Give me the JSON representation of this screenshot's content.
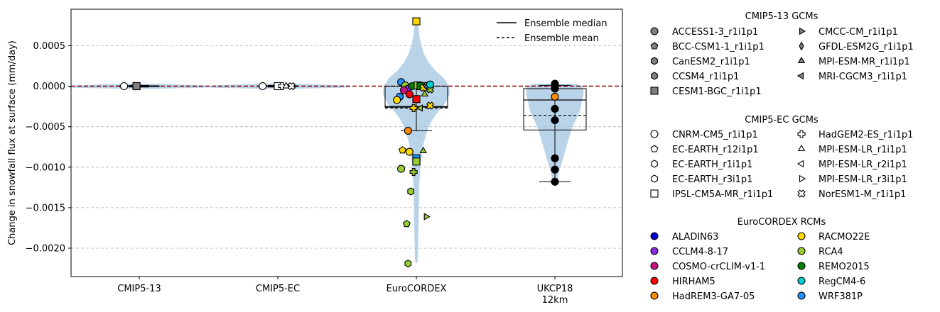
{
  "chart_data": {
    "type": "violin",
    "ylabel": "Change in snowfall flux at surface (mm/day)",
    "ylim": [
      -0.00235,
      0.00095
    ],
    "yticks": [
      {
        "v": 0.0005,
        "label": "0.0005"
      },
      {
        "v": 0.0,
        "label": "0.0000"
      },
      {
        "v": -0.0005,
        "label": "−0.0005"
      },
      {
        "v": -0.001,
        "label": "−0.0010"
      },
      {
        "v": -0.0015,
        "label": "−0.0015"
      },
      {
        "v": -0.002,
        "label": "−0.0020"
      }
    ],
    "grid": "y-dashed",
    "zero_line": {
      "y": 0,
      "color": "#8b0000",
      "style": "dashed"
    },
    "categories": [
      {
        "label": "CMIP5-13",
        "label2": ""
      },
      {
        "label": "CMIP5-EC",
        "label2": ""
      },
      {
        "label": "EuroCORDEX",
        "label2": ""
      },
      {
        "label": "UKCP18",
        "label2": "12km"
      }
    ],
    "violins": [
      {
        "category": 0,
        "profile": [
          [
            -3e-05,
            0.6
          ],
          [
            -2e-05,
            1.9
          ],
          [
            -1e-05,
            2.2
          ],
          [
            0.0,
            2.1
          ],
          [
            1e-05,
            1.9
          ],
          [
            2e-05,
            1.2
          ],
          [
            3e-05,
            0.5
          ]
        ]
      },
      {
        "category": 1,
        "profile": [
          [
            -3e-05,
            0.6
          ],
          [
            -2e-05,
            1.9
          ],
          [
            -1e-05,
            2.2
          ],
          [
            0.0,
            2.1
          ],
          [
            1e-05,
            1.9
          ],
          [
            2e-05,
            1.2
          ],
          [
            3e-05,
            0.5
          ]
        ]
      },
      {
        "category": 2,
        "profile": [
          [
            -0.00218,
            0.03
          ],
          [
            -0.0021,
            0.045
          ],
          [
            -0.002,
            0.05
          ],
          [
            -0.0019,
            0.055
          ],
          [
            -0.0018,
            0.06
          ],
          [
            -0.0017,
            0.065
          ],
          [
            -0.0016,
            0.07
          ],
          [
            -0.0015,
            0.075
          ],
          [
            -0.0014,
            0.08
          ],
          [
            -0.0013,
            0.085
          ],
          [
            -0.0012,
            0.09
          ],
          [
            -0.0011,
            0.105
          ],
          [
            -0.001,
            0.12
          ],
          [
            -0.0009,
            0.15
          ],
          [
            -0.0008,
            0.18
          ],
          [
            -0.0007,
            0.22
          ],
          [
            -0.0006,
            0.29
          ],
          [
            -0.0005,
            0.37
          ],
          [
            -0.0004,
            0.5
          ],
          [
            -0.0003,
            0.68
          ],
          [
            -0.0002,
            0.88
          ],
          [
            -0.0001,
            1.0
          ],
          [
            0.0,
            0.98
          ],
          [
            0.0001,
            0.82
          ],
          [
            0.0002,
            0.55
          ],
          [
            0.0003,
            0.36
          ],
          [
            0.0004,
            0.23
          ],
          [
            0.0005,
            0.15
          ],
          [
            0.0006,
            0.1
          ],
          [
            0.0007,
            0.07
          ],
          [
            0.0008,
            0.03
          ]
        ]
      },
      {
        "category": 3,
        "profile": [
          [
            -0.0012,
            0.08
          ],
          [
            -0.0011,
            0.1
          ],
          [
            -0.001,
            0.16
          ],
          [
            -0.0009,
            0.24
          ],
          [
            -0.0008,
            0.31
          ],
          [
            -0.0007,
            0.38
          ],
          [
            -0.0006,
            0.45
          ],
          [
            -0.0005,
            0.53
          ],
          [
            -0.0004,
            0.65
          ],
          [
            -0.0003,
            0.75
          ],
          [
            -0.0002,
            0.8
          ],
          [
            -0.0001,
            0.86
          ],
          [
            0.0,
            0.85
          ],
          [
            3e-05,
            0.62
          ]
        ]
      }
    ],
    "boxes": [
      {
        "category": 0,
        "q1": -5e-06,
        "median": 0.0,
        "q3": 5e-06,
        "mean": 0.0,
        "whislo": -1e-05,
        "whishi": 1e-05
      },
      {
        "category": 1,
        "q1": -5e-06,
        "median": 0.0,
        "q3": 5e-06,
        "mean": 0.0,
        "whislo": -1e-05,
        "whishi": 1e-05
      },
      {
        "category": 2,
        "q1": -0.00026,
        "median": -0.00025,
        "q3": 0.0,
        "mean": -0.00027,
        "whislo": -0.00055,
        "whishi": 0.0
      },
      {
        "category": 3,
        "q1": -0.00054,
        "median": -0.00017,
        "q3": -3e-05,
        "mean": -0.00036,
        "whislo": -0.00118,
        "whishi": 1e-05
      }
    ],
    "points": [
      {
        "model": "CNRM-CM5_r1i1p1",
        "category": 0,
        "dx": -0.11,
        "y": 0.0,
        "marker": "circle",
        "fill": "#ffffff"
      },
      {
        "model": "IPSL-CM5A-MR_r1i1p1",
        "category": 0,
        "dx": -0.02,
        "y": 0.0,
        "marker": "square",
        "fill": "#ffffff"
      },
      {
        "model": "CESM1-BGC_r1i1p1",
        "category": 0,
        "dx": -0.02,
        "y": 0.0,
        "marker": "square",
        "fill": "#808080"
      },
      {
        "model": "CNRM-CM5_r1i1p1",
        "category": 1,
        "dx": -0.11,
        "y": 0.0,
        "marker": "circle",
        "fill": "#ffffff"
      },
      {
        "model": "IPSL-CM5A-MR_r1i1p1",
        "category": 1,
        "dx": 0.0,
        "y": 0.0,
        "marker": "square",
        "fill": "#ffffff"
      },
      {
        "model": "HadGEM2-ES_r1i1p1",
        "category": 1,
        "dx": 0.03,
        "y": 0.0,
        "marker": "plus",
        "fill": "#ffffff"
      },
      {
        "model": "MPI-ESM-LR_r1i1p1",
        "category": 1,
        "dx": 0.06,
        "y": 0.0,
        "marker": "triangle-up",
        "fill": "#ffffff"
      },
      {
        "model": "NorESM1-M_r1i1p1",
        "category": 1,
        "dx": 0.1,
        "y": 0.0,
        "marker": "x",
        "fill": "#ffffff"
      },
      {
        "model": "CNRM-CM5_r1i1p1",
        "category": 2,
        "dx": 0.0,
        "y": 0.0008,
        "marker": "square",
        "fill": "#ffd700"
      },
      {
        "model": "WRF381P",
        "category": 2,
        "dx": -0.11,
        "y": 5e-05,
        "marker": "circle",
        "fill": "#1e90ff"
      },
      {
        "model": "RCA4",
        "category": 2,
        "dx": -0.08,
        "y": 1e-05,
        "marker": "circle",
        "fill": "#9acd32"
      },
      {
        "model": "CCLM4-8-17",
        "category": 2,
        "dx": -0.06,
        "y": -3e-05,
        "marker": "circle",
        "fill": "#8a2be2"
      },
      {
        "model": "REMO2015",
        "category": 2,
        "dx": -0.03,
        "y": 0.0,
        "marker": "circle",
        "fill": "#008000"
      },
      {
        "model": "RCA4",
        "category": 2,
        "dx": 0.01,
        "y": 1e-05,
        "marker": "square",
        "fill": "#9acd32"
      },
      {
        "model": "REMO2015",
        "category": 2,
        "dx": 0.03,
        "y": 0.0,
        "marker": "square",
        "fill": "#008000"
      },
      {
        "model": "RACMO22E",
        "category": 2,
        "dx": 0.05,
        "y": -2e-05,
        "marker": "x",
        "fill": "#ffd700"
      },
      {
        "model": "WRF381P",
        "category": 2,
        "dx": 0.08,
        "y": 1e-05,
        "marker": "x",
        "fill": "#1e90ff"
      },
      {
        "model": "RCA4",
        "category": 2,
        "dx": 0.1,
        "y": -4e-05,
        "marker": "x",
        "fill": "#9acd32"
      },
      {
        "model": "RegCM4-6",
        "category": 2,
        "dx": 0.1,
        "y": 2e-05,
        "marker": "circle",
        "fill": "#00ced1"
      },
      {
        "model": "COSMO-crCLIM-v1-1",
        "category": 2,
        "dx": -0.09,
        "y": -5e-05,
        "marker": "circle",
        "fill": "#c71585"
      },
      {
        "model": "HIRHAM5",
        "category": 2,
        "dx": -0.05,
        "y": -0.0001,
        "marker": "circle",
        "fill": "#ff0000"
      },
      {
        "model": "WRF381P",
        "category": 2,
        "dx": -0.12,
        "y": -0.00013,
        "marker": "circle",
        "fill": "#1e90ff"
      },
      {
        "model": "HIRHAM5",
        "category": 2,
        "dx": 0.0,
        "y": -0.00016,
        "marker": "square",
        "fill": "#ff0000"
      },
      {
        "model": "RACMO22E",
        "category": 2,
        "dx": -0.14,
        "y": -0.00017,
        "marker": "circle",
        "fill": "#ffd700"
      },
      {
        "model": "RCA4",
        "category": 2,
        "dx": 0.06,
        "y": -0.0001,
        "marker": "triangle-up",
        "fill": "#9acd32"
      },
      {
        "model": "RACMO22E",
        "category": 2,
        "dx": -0.02,
        "y": -0.00027,
        "marker": "plus",
        "fill": "#ffd700"
      },
      {
        "model": "RCA4",
        "category": 2,
        "dx": 0.03,
        "y": -0.00027,
        "marker": "triangle-left",
        "fill": "#9acd32"
      },
      {
        "model": "RACMO22E",
        "category": 2,
        "dx": 0.1,
        "y": -0.00024,
        "marker": "x",
        "fill": "#ffd700"
      },
      {
        "model": "HadREM3-GA7-05",
        "category": 2,
        "dx": -0.06,
        "y": -0.00055,
        "marker": "circle",
        "fill": "#ff8c00"
      },
      {
        "model": "RACMO22E",
        "category": 2,
        "dx": -0.1,
        "y": -0.00079,
        "marker": "pentagon",
        "fill": "#ffd700"
      },
      {
        "model": "RACMO22E",
        "category": 2,
        "dx": -0.05,
        "y": -0.00081,
        "marker": "circle",
        "fill": "#ffd700"
      },
      {
        "model": "RCA4",
        "category": 2,
        "dx": 0.05,
        "y": -0.0008,
        "marker": "triangle-up",
        "fill": "#9acd32"
      },
      {
        "model": "WRF381P",
        "category": 2,
        "dx": 0.0,
        "y": -0.00089,
        "marker": "square",
        "fill": "#1e90ff"
      },
      {
        "model": "RCA4",
        "category": 2,
        "dx": 0.0,
        "y": -0.00093,
        "marker": "square",
        "fill": "#9acd32"
      },
      {
        "model": "RCA4",
        "category": 2,
        "dx": -0.11,
        "y": -0.00102,
        "marker": "circle",
        "fill": "#9acd32"
      },
      {
        "model": "RCA4",
        "category": 2,
        "dx": -0.02,
        "y": -0.00106,
        "marker": "plus",
        "fill": "#9acd32"
      },
      {
        "model": "RCA4",
        "category": 2,
        "dx": -0.04,
        "y": -0.0013,
        "marker": "hexagon",
        "fill": "#9acd32"
      },
      {
        "model": "RCA4",
        "category": 2,
        "dx": 0.07,
        "y": -0.00161,
        "marker": "triangle-right",
        "fill": "#9acd32"
      },
      {
        "model": "RCA4",
        "category": 2,
        "dx": -0.07,
        "y": -0.0017,
        "marker": "pentagon",
        "fill": "#9acd32"
      },
      {
        "model": "RCA4",
        "category": 2,
        "dx": -0.06,
        "y": -0.00219,
        "marker": "hexagon",
        "fill": "#9acd32"
      },
      {
        "model": "",
        "category": 3,
        "dx": 0.0,
        "y": 3e-05,
        "marker": "circle",
        "fill": "#000000"
      },
      {
        "model": "",
        "category": 3,
        "dx": 0.0,
        "y": 0.0,
        "marker": "circle",
        "fill": "#000000"
      },
      {
        "model": "",
        "category": 3,
        "dx": 0.0,
        "y": -3e-05,
        "marker": "circle",
        "fill": "#000000"
      },
      {
        "model": "",
        "category": 3,
        "dx": 0.0,
        "y": -0.00013,
        "marker": "circle",
        "fill": "#ff8c00"
      },
      {
        "model": "",
        "category": 3,
        "dx": 0.0,
        "y": -0.00028,
        "marker": "circle",
        "fill": "#000000"
      },
      {
        "model": "",
        "category": 3,
        "dx": 0.0,
        "y": -0.00042,
        "marker": "circle",
        "fill": "#000000"
      },
      {
        "model": "",
        "category": 3,
        "dx": 0.0,
        "y": -0.00089,
        "marker": "circle",
        "fill": "#000000"
      },
      {
        "model": "",
        "category": 3,
        "dx": 0.0,
        "y": -0.00103,
        "marker": "circle",
        "fill": "#000000"
      },
      {
        "model": "",
        "category": 3,
        "dx": 0.0,
        "y": -0.00118,
        "marker": "circle",
        "fill": "#000000"
      }
    ],
    "inner_legend": [
      {
        "label": "Ensemble median",
        "style": "solid"
      },
      {
        "label": "Ensemble mean",
        "style": "dashed"
      }
    ],
    "legend_placement": "outside-right",
    "legend_groups": [
      {
        "title": "CMIP5-13 GCMs",
        "columns": [
          [
            {
              "label": "ACCESS1-3_r1i1p1",
              "marker": "circle",
              "fill": "#808080"
            },
            {
              "label": "BCC-CSM1-1_r1i1p1",
              "marker": "pentagon",
              "fill": "#808080"
            },
            {
              "label": "CanESM2_r1i1p1",
              "marker": "hexagon",
              "fill": "#808080"
            },
            {
              "label": "CCSM4_r1i1p1",
              "marker": "hexagon",
              "fill": "#808080"
            },
            {
              "label": "CESM1-BGC_r1i1p1",
              "marker": "square",
              "fill": "#808080"
            }
          ],
          [
            {
              "label": "CMCC-CM_r1i1p1",
              "marker": "triangle-right",
              "fill": "#808080"
            },
            {
              "label": "GFDL-ESM2G_r1i1p1",
              "marker": "diamond-thin",
              "fill": "#808080"
            },
            {
              "label": "MPI-ESM-MR_r1i1p1",
              "marker": "triangle-up",
              "fill": "#808080"
            },
            {
              "label": "MRI-CGCM3_r1i1p1",
              "marker": "triangle-left",
              "fill": "#808080"
            }
          ]
        ]
      },
      {
        "title": "CMIP5-EC GCMs",
        "columns": [
          [
            {
              "label": "CNRM-CM5_r1i1p1",
              "marker": "circle",
              "fill": "#ffffff"
            },
            {
              "label": "EC-EARTH_r12i1p1",
              "marker": "pentagon",
              "fill": "#ffffff"
            },
            {
              "label": "EC-EARTH_r1i1p1",
              "marker": "hexagon",
              "fill": "#ffffff"
            },
            {
              "label": "EC-EARTH_r3i1p1",
              "marker": "hexagon",
              "fill": "#ffffff"
            },
            {
              "label": "IPSL-CM5A-MR_r1i1p1",
              "marker": "square",
              "fill": "#ffffff"
            }
          ],
          [
            {
              "label": "HadGEM2-ES_r1i1p1",
              "marker": "plus",
              "fill": "#ffffff"
            },
            {
              "label": "MPI-ESM-LR_r1i1p1",
              "marker": "triangle-up",
              "fill": "#ffffff"
            },
            {
              "label": "MPI-ESM-LR_r2i1p1",
              "marker": "triangle-left",
              "fill": "#ffffff"
            },
            {
              "label": "MPI-ESM-LR_r3i1p1",
              "marker": "triangle-right",
              "fill": "#ffffff"
            },
            {
              "label": "NorESM1-M_r1i1p1",
              "marker": "x",
              "fill": "#ffffff"
            }
          ]
        ]
      },
      {
        "title": "EuroCORDEX RCMs",
        "columns": [
          [
            {
              "label": "ALADIN63",
              "marker": "circle",
              "fill": "#0000cd"
            },
            {
              "label": "CCLM4-8-17",
              "marker": "circle",
              "fill": "#8a2be2"
            },
            {
              "label": "COSMO-crCLIM-v1-1",
              "marker": "circle",
              "fill": "#c71585"
            },
            {
              "label": "HIRHAM5",
              "marker": "circle",
              "fill": "#ff0000"
            },
            {
              "label": "HadREM3-GA7-05",
              "marker": "circle",
              "fill": "#ff8c00"
            }
          ],
          [
            {
              "label": "RACMO22E",
              "marker": "circle",
              "fill": "#ffd700"
            },
            {
              "label": "RCA4",
              "marker": "circle",
              "fill": "#9acd32"
            },
            {
              "label": "REMO2015",
              "marker": "circle",
              "fill": "#008000"
            },
            {
              "label": "RegCM4-6",
              "marker": "circle",
              "fill": "#00ced1"
            },
            {
              "label": "WRF381P",
              "marker": "circle",
              "fill": "#1e90ff"
            }
          ]
        ]
      }
    ],
    "colors": {
      "violin": "#a8c8e4",
      "zero_line": "#8b0000",
      "grid": "#b0b0b0",
      "box": "#000000"
    }
  }
}
